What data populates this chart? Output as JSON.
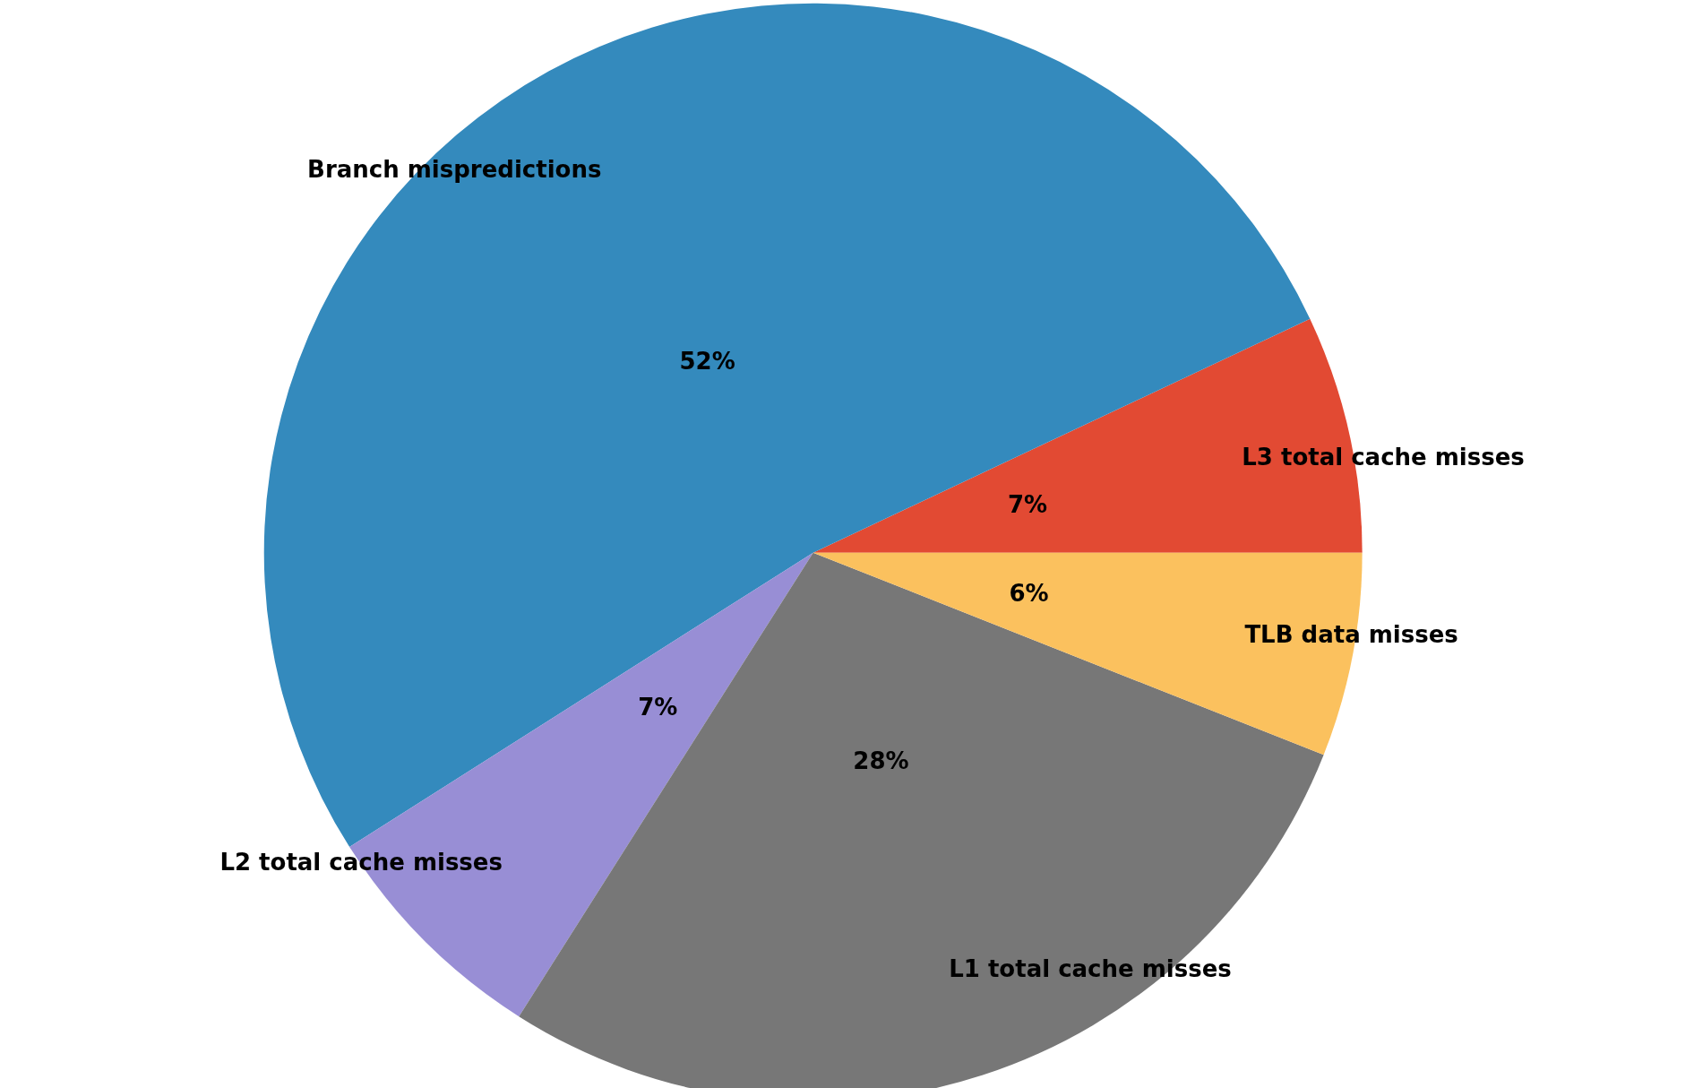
{
  "chart_data": {
    "type": "pie",
    "categories": [
      "L3 total cache misses",
      "Branch mispredictions",
      "L2 total cache misses",
      "L1 total cache misses",
      "TLB data misses"
    ],
    "values": [
      7,
      52,
      7,
      28,
      6
    ],
    "value_labels": [
      "7%",
      "52%",
      "7%",
      "28%",
      "6%"
    ],
    "colors": [
      "#e24a33",
      "#348abd",
      "#988ed5",
      "#777777",
      "#fbc15e"
    ],
    "legend": false
  }
}
